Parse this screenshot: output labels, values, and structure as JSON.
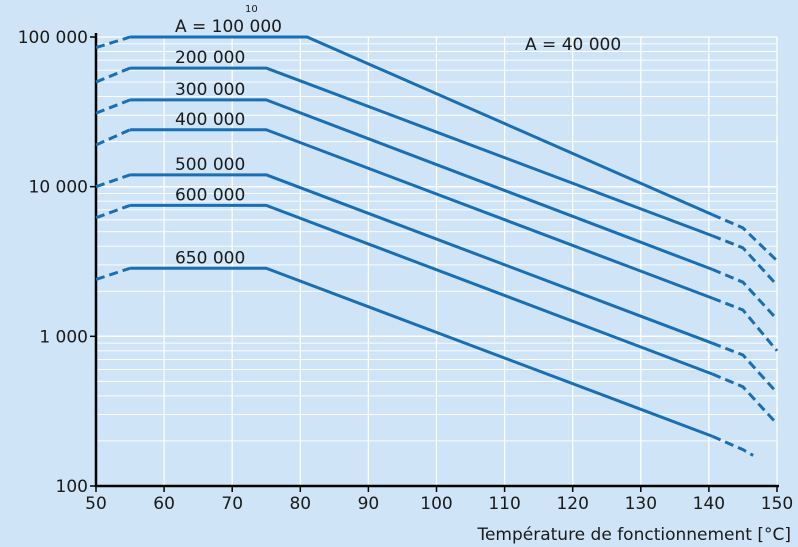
{
  "chart_data": {
    "type": "line",
    "title": "",
    "xlabel": "Température de fonctionnement [°C]",
    "ylabel": "",
    "y_scale": "log",
    "xlim": [
      50,
      150
    ],
    "ylim": [
      100,
      100000
    ],
    "x_ticks": [
      "50",
      "60",
      "70",
      "80",
      "90",
      "100",
      "110",
      "120",
      "130",
      "140",
      "150"
    ],
    "y_ticks": [
      {
        "value": 100,
        "label": "100"
      },
      {
        "value": 1000,
        "label": "1 000"
      },
      {
        "value": 10000,
        "label": "10 000"
      },
      {
        "value": 100000,
        "label": "100 000"
      }
    ],
    "grid": true,
    "line_color": "#1a6fb4",
    "axis_title_fragment": "10",
    "series": [
      {
        "name": "A = 100 000",
        "points": [
          [
            55,
            100000
          ],
          [
            81,
            100000
          ],
          [
            140.5,
            6500
          ]
        ],
        "dash_start": [
          50,
          85000
        ],
        "dash_end": [
          [
            140.5,
            6500
          ],
          [
            145,
            5300
          ],
          [
            150,
            3200
          ]
        ]
      },
      {
        "name": "200 000",
        "points": [
          [
            55,
            62000
          ],
          [
            75,
            62000
          ],
          [
            140.5,
            4700
          ]
        ],
        "dash_start": [
          50,
          50000
        ],
        "dash_end": [
          [
            140.5,
            4700
          ],
          [
            145,
            3900
          ],
          [
            150,
            2200
          ]
        ]
      },
      {
        "name": "300 000",
        "points": [
          [
            55,
            38000
          ],
          [
            75,
            38000
          ],
          [
            140.5,
            2800
          ]
        ],
        "dash_start": [
          50,
          31000
        ],
        "dash_end": [
          [
            140.5,
            2800
          ],
          [
            145,
            2300
          ],
          [
            150,
            1300
          ]
        ]
      },
      {
        "name": "400 000",
        "points": [
          [
            55,
            24000
          ],
          [
            75,
            24000
          ],
          [
            140.5,
            1800
          ]
        ],
        "dash_start": [
          50,
          19000
        ],
        "dash_end": [
          [
            140.5,
            1800
          ],
          [
            145,
            1500
          ],
          [
            150,
            800
          ]
        ]
      },
      {
        "name": "500 000",
        "points": [
          [
            55,
            12000
          ],
          [
            75,
            12000
          ],
          [
            140.5,
            900
          ]
        ],
        "dash_start": [
          50,
          10000
        ],
        "dash_end": [
          [
            140.5,
            900
          ],
          [
            145,
            750
          ],
          [
            150,
            420
          ]
        ]
      },
      {
        "name": "600 000",
        "points": [
          [
            55,
            7500
          ],
          [
            75,
            7500
          ],
          [
            140.5,
            560
          ]
        ],
        "dash_start": [
          50,
          6200
        ],
        "dash_end": [
          [
            140.5,
            560
          ],
          [
            145,
            460
          ],
          [
            150,
            260
          ]
        ]
      },
      {
        "name": "650 000",
        "points": [
          [
            55,
            2850
          ],
          [
            75,
            2850
          ],
          [
            140.5,
            215
          ]
        ],
        "dash_start": [
          50,
          2400
        ],
        "dash_end": [
          [
            140.5,
            215
          ],
          [
            145,
            175
          ],
          [
            146.5,
            160
          ]
        ]
      }
    ],
    "annotations": [
      {
        "text": "A = 40 000",
        "x": 113,
        "y": 90000
      }
    ]
  }
}
